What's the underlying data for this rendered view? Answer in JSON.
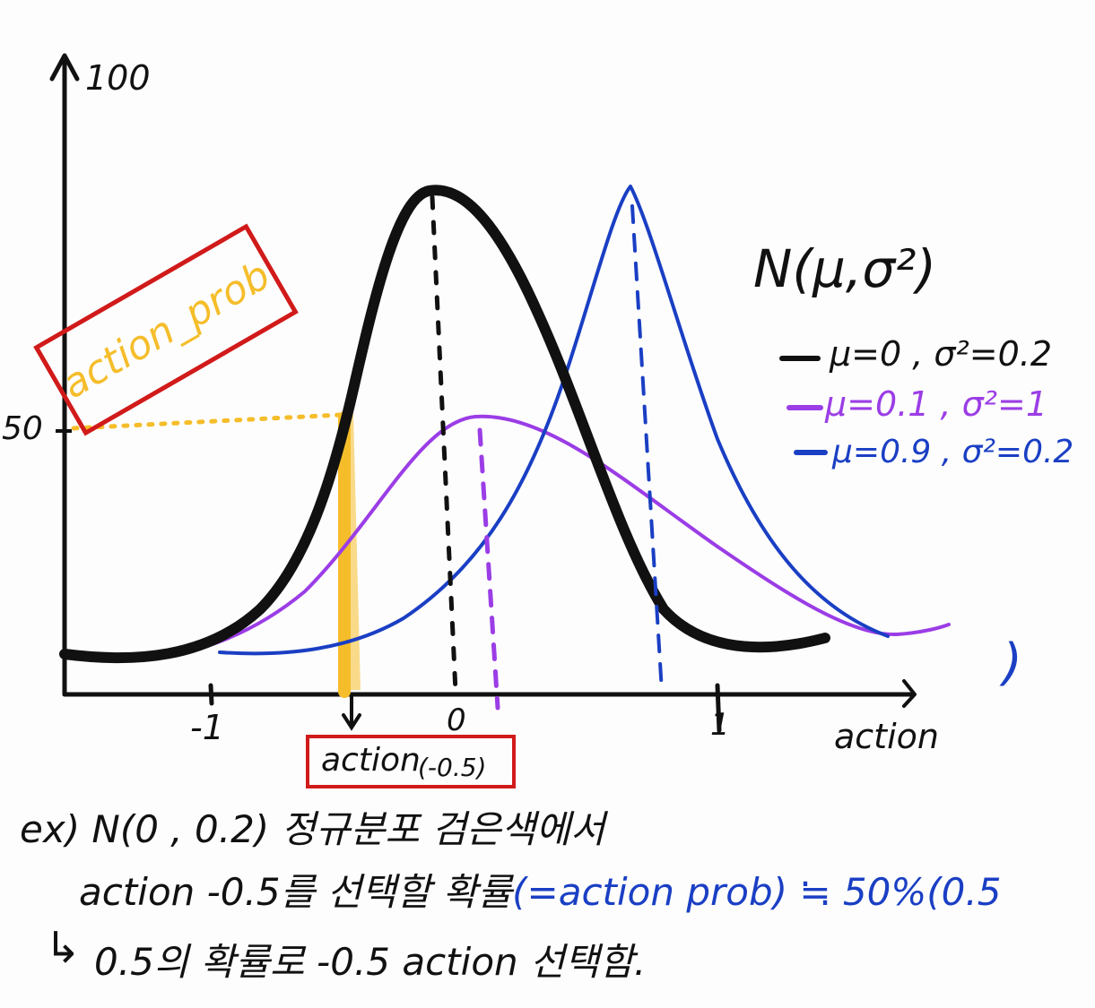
{
  "axes": {
    "y_top_label": "100",
    "y_mid_label": "50",
    "x_label": "action",
    "x_ticks": [
      "-1",
      "0",
      "1"
    ]
  },
  "annotation": {
    "action_prob_label": "action_prob",
    "action_box_main": "action",
    "action_box_sub": "(-0.5)"
  },
  "legend": {
    "title": "N(μ,σ²)",
    "items": [
      {
        "text": "μ=0 , σ²=0.2",
        "color": "#111111"
      },
      {
        "text": "μ=0.1 , σ²=1",
        "color": "#9b3de6"
      },
      {
        "text": "μ=0.9 , σ²=0.2",
        "color": "#1a3fc4"
      }
    ],
    "closing_paren": ")"
  },
  "colors": {
    "black_curve": "#111111",
    "purple_curve": "#9b3de6",
    "blue_curve": "#1a3fc4",
    "highlight": "#f5bd2a",
    "box_red": "#d11a1a"
  },
  "notes": {
    "line1": "ex) N(0 , 0.2) 정규분포 검은색에서",
    "line2_black": "action  -0.5를  선택할 확률",
    "line2_blue": "(=action prob) ≒ 50%(0.5",
    "line3_arrow": "↳",
    "line3": "0.5의 확률로  -0.5 action 선택함."
  }
}
